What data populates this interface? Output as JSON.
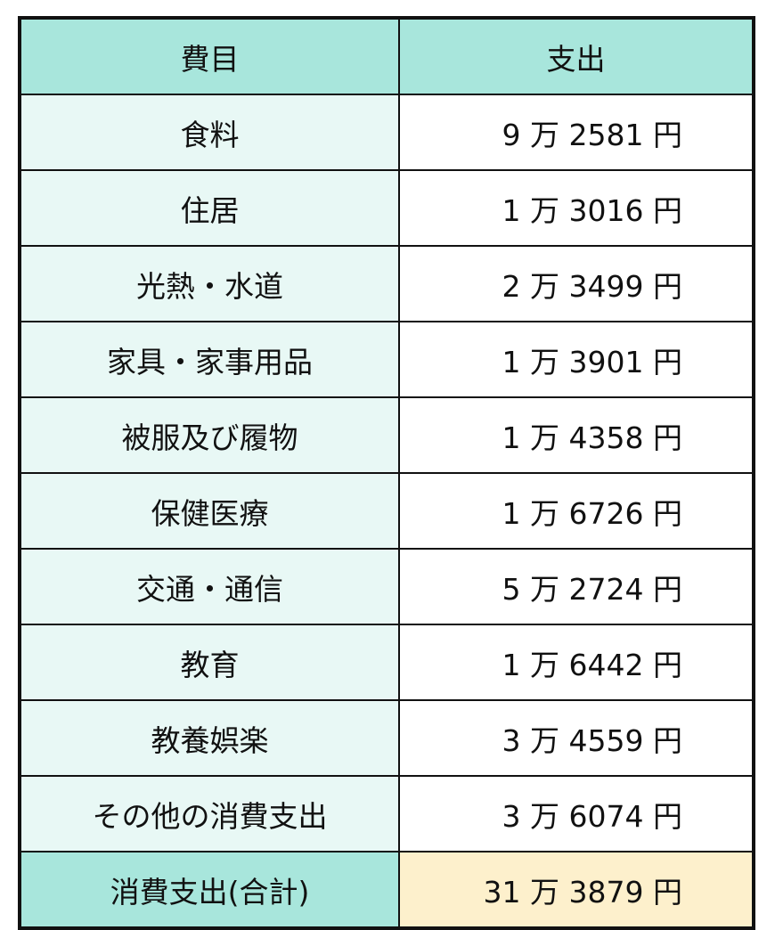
{
  "header": {
    "category": "費目",
    "expense": "支出"
  },
  "rows": [
    {
      "category": "食料",
      "expense": "9 万 2581 円"
    },
    {
      "category": "住居",
      "expense": "1 万 3016 円"
    },
    {
      "category": "光熱・水道",
      "expense": "2 万 3499 円"
    },
    {
      "category": "家具・家事用品",
      "expense": "1 万 3901 円"
    },
    {
      "category": "被服及び履物",
      "expense": "1 万 4358 円"
    },
    {
      "category": "保健医療",
      "expense": "1 万 6726 円"
    },
    {
      "category": "交通・通信",
      "expense": "5 万 2724 円"
    },
    {
      "category": "教育",
      "expense": "1 万 6442 円"
    },
    {
      "category": "教養娯楽",
      "expense": "3 万 4559 円"
    },
    {
      "category": "その他の消費支出",
      "expense": "3 万 6074 円"
    }
  ],
  "total": {
    "category": "消費支出(合計)",
    "expense": "31 万 3879 円"
  },
  "colors": {
    "header": "#a8e6dc",
    "category_cell": "#e8f8f5",
    "total_value": "#fdf0cc"
  }
}
